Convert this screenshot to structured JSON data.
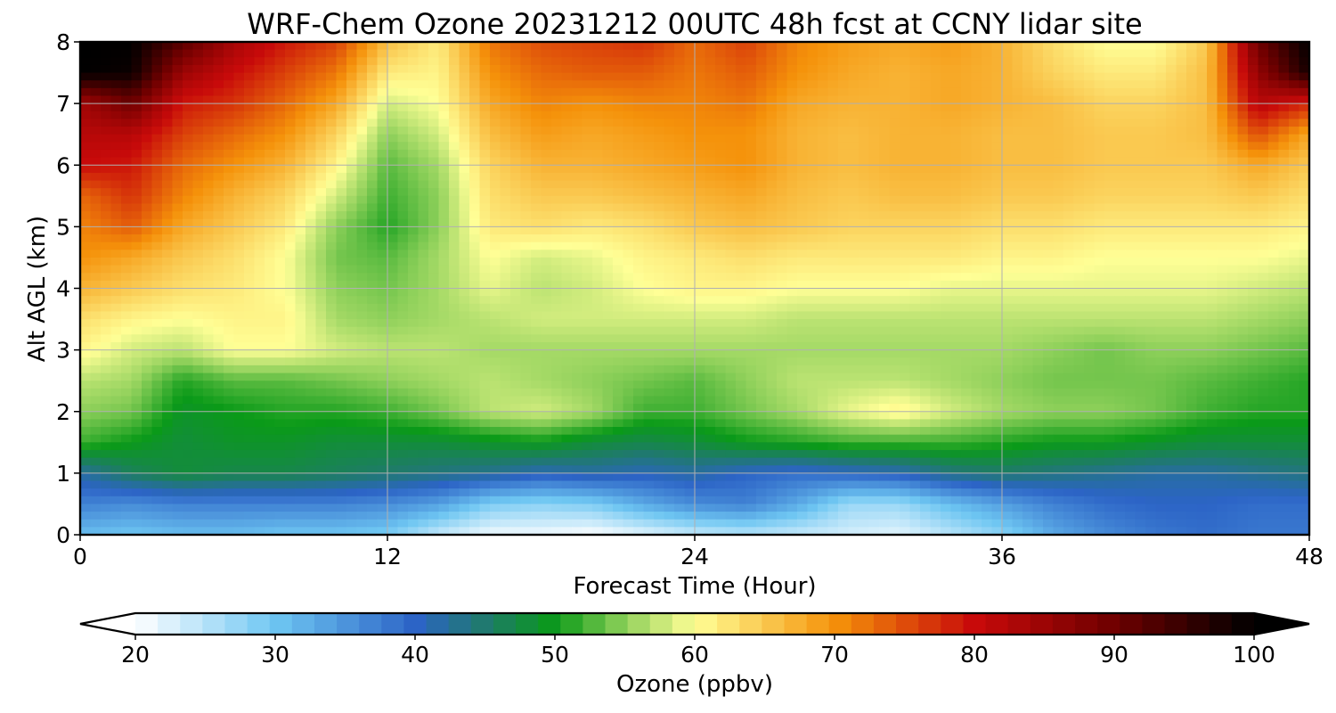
{
  "chart_data": {
    "type": "heatmap",
    "title": "WRF-Chem Ozone  20231212 00UTC 48h fcst at CCNY lidar site",
    "xlabel": "Forecast Time (Hour)",
    "ylabel": "Alt AGL (km)",
    "xlim": [
      0,
      48
    ],
    "ylim": [
      0,
      8
    ],
    "xticks": [
      0,
      12,
      24,
      36,
      48
    ],
    "yticks": [
      0,
      1,
      2,
      3,
      4,
      5,
      6,
      7,
      8
    ],
    "grid": true,
    "x": [
      0,
      2,
      4,
      6,
      8,
      10,
      12,
      14,
      16,
      18,
      20,
      22,
      24,
      26,
      28,
      30,
      32,
      34,
      36,
      38,
      40,
      42,
      44,
      46,
      48
    ],
    "y": [
      0,
      0.5,
      1,
      1.5,
      2,
      2.5,
      3,
      3.5,
      4,
      4.5,
      5,
      5.5,
      6,
      6.5,
      7,
      7.5,
      8
    ],
    "z": [
      [
        31,
        30,
        31,
        31,
        30,
        30,
        29,
        24,
        21,
        21,
        20,
        22,
        24,
        25,
        24,
        23,
        22,
        25,
        28,
        33,
        36,
        38,
        39,
        38,
        38
      ],
      [
        37,
        36,
        37,
        37,
        37,
        37,
        36,
        34,
        29,
        28,
        29,
        33,
        36,
        37,
        33,
        27,
        27,
        31,
        34,
        37,
        39,
        40,
        40,
        39,
        39
      ],
      [
        42,
        46,
        48,
        47,
        47,
        46,
        45,
        44,
        43,
        41,
        42,
        41,
        42,
        40,
        39,
        40,
        41,
        44,
        45,
        44,
        43,
        42,
        42,
        43,
        44
      ],
      [
        52,
        50,
        48,
        49,
        49,
        48,
        48,
        48,
        49,
        50,
        48,
        47,
        48,
        50,
        51,
        52,
        52,
        52,
        51,
        50,
        50,
        49,
        48,
        48,
        48
      ],
      [
        55,
        54,
        49,
        50,
        51,
        51,
        52,
        54,
        57,
        58,
        56,
        52,
        52,
        54,
        56,
        59,
        61,
        58,
        56,
        55,
        55,
        54,
        52,
        51,
        51
      ],
      [
        57,
        56,
        51,
        53,
        53,
        54,
        55,
        56,
        57,
        56,
        55,
        54,
        53,
        55,
        57,
        57,
        57,
        56,
        55,
        54,
        54,
        54,
        53,
        52,
        51
      ],
      [
        61,
        58,
        57,
        60,
        60,
        58,
        57,
        57,
        56,
        56,
        56,
        56,
        56,
        56,
        56,
        56,
        56,
        56,
        56,
        55,
        54,
        55,
        55,
        54,
        53
      ],
      [
        63,
        61,
        60,
        61,
        61,
        56,
        55,
        56,
        57,
        58,
        58,
        58,
        58,
        58,
        57,
        57,
        57,
        57,
        57,
        57,
        57,
        57,
        57,
        56,
        55
      ],
      [
        67,
        65,
        63,
        62,
        60,
        55,
        54,
        56,
        59,
        57,
        58,
        60,
        61,
        61,
        60,
        60,
        60,
        59,
        59,
        59,
        59,
        59,
        59,
        58,
        57
      ],
      [
        70,
        68,
        65,
        63,
        60,
        54,
        53,
        56,
        60,
        58,
        59,
        61,
        62,
        63,
        62,
        62,
        62,
        62,
        61,
        61,
        60,
        60,
        60,
        60,
        59
      ],
      [
        71,
        74,
        68,
        65,
        62,
        55,
        51,
        55,
        62,
        63,
        62,
        63,
        65,
        66,
        65,
        64,
        64,
        64,
        63,
        63,
        62,
        62,
        62,
        62,
        61
      ],
      [
        73,
        77,
        71,
        67,
        64,
        58,
        52,
        55,
        63,
        65,
        65,
        66,
        67,
        68,
        66,
        65,
        66,
        66,
        65,
        65,
        64,
        64,
        64,
        65,
        63
      ],
      [
        80,
        79,
        73,
        70,
        67,
        61,
        53,
        56,
        64,
        67,
        67,
        68,
        69,
        70,
        67,
        66,
        67,
        67,
        66,
        66,
        65,
        65,
        65,
        68,
        65
      ],
      [
        82,
        82,
        76,
        73,
        70,
        64,
        55,
        58,
        66,
        69,
        68,
        69,
        70,
        70,
        67,
        66,
        67,
        67,
        66,
        66,
        65,
        65,
        66,
        75,
        68
      ],
      [
        84,
        90,
        79,
        77,
        73,
        68,
        58,
        60,
        68,
        71,
        70,
        71,
        71,
        72,
        68,
        67,
        67,
        68,
        67,
        66,
        64,
        64,
        66,
        82,
        78
      ],
      [
        100,
        99,
        85,
        80,
        76,
        72,
        62,
        61,
        70,
        73,
        74,
        74,
        72,
        74,
        70,
        68,
        67,
        68,
        67,
        64,
        62,
        62,
        66,
        86,
        98
      ],
      [
        100,
        100,
        92,
        84,
        79,
        76,
        66,
        62,
        72,
        75,
        76,
        77,
        73,
        76,
        71,
        69,
        68,
        69,
        67,
        63,
        60,
        60,
        65,
        90,
        100
      ]
    ],
    "colorbar": {
      "label": "Ozone  (ppbv)",
      "min": 20,
      "max": 100,
      "ticks": [
        20,
        30,
        40,
        50,
        60,
        70,
        80,
        90,
        100
      ],
      "extend": "both",
      "colors": {
        "20": "#ffffff",
        "30": "#6ec6f2",
        "40": "#2c64c6",
        "45": "#1f7a6c",
        "50": "#0a9a18",
        "55": "#8ed05a",
        "60": "#ffff96",
        "70": "#f5920a",
        "80": "#c80a0a",
        "90": "#6e0000",
        "100": "#000000"
      }
    }
  }
}
